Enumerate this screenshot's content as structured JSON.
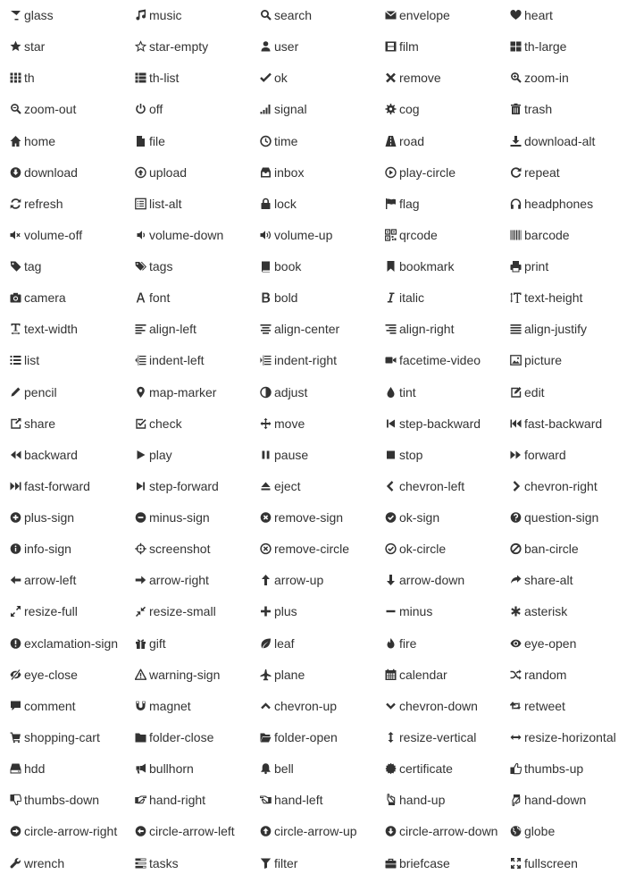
{
  "ink_color": "#333333",
  "icons": [
    {
      "name": "glass"
    },
    {
      "name": "music"
    },
    {
      "name": "search"
    },
    {
      "name": "envelope"
    },
    {
      "name": "heart"
    },
    {
      "name": "star"
    },
    {
      "name": "star-empty"
    },
    {
      "name": "user"
    },
    {
      "name": "film"
    },
    {
      "name": "th-large"
    },
    {
      "name": "th"
    },
    {
      "name": "th-list"
    },
    {
      "name": "ok"
    },
    {
      "name": "remove"
    },
    {
      "name": "zoom-in"
    },
    {
      "name": "zoom-out"
    },
    {
      "name": "off"
    },
    {
      "name": "signal"
    },
    {
      "name": "cog"
    },
    {
      "name": "trash"
    },
    {
      "name": "home"
    },
    {
      "name": "file"
    },
    {
      "name": "time"
    },
    {
      "name": "road"
    },
    {
      "name": "download-alt"
    },
    {
      "name": "download"
    },
    {
      "name": "upload"
    },
    {
      "name": "inbox"
    },
    {
      "name": "play-circle"
    },
    {
      "name": "repeat"
    },
    {
      "name": "refresh"
    },
    {
      "name": "list-alt"
    },
    {
      "name": "lock"
    },
    {
      "name": "flag"
    },
    {
      "name": "headphones"
    },
    {
      "name": "volume-off"
    },
    {
      "name": "volume-down"
    },
    {
      "name": "volume-up"
    },
    {
      "name": "qrcode"
    },
    {
      "name": "barcode"
    },
    {
      "name": "tag"
    },
    {
      "name": "tags"
    },
    {
      "name": "book"
    },
    {
      "name": "bookmark"
    },
    {
      "name": "print"
    },
    {
      "name": "camera"
    },
    {
      "name": "font"
    },
    {
      "name": "bold"
    },
    {
      "name": "italic"
    },
    {
      "name": "text-height"
    },
    {
      "name": "text-width"
    },
    {
      "name": "align-left"
    },
    {
      "name": "align-center"
    },
    {
      "name": "align-right"
    },
    {
      "name": "align-justify"
    },
    {
      "name": "list"
    },
    {
      "name": "indent-left"
    },
    {
      "name": "indent-right"
    },
    {
      "name": "facetime-video"
    },
    {
      "name": "picture"
    },
    {
      "name": "pencil"
    },
    {
      "name": "map-marker"
    },
    {
      "name": "adjust"
    },
    {
      "name": "tint"
    },
    {
      "name": "edit"
    },
    {
      "name": "share"
    },
    {
      "name": "check"
    },
    {
      "name": "move"
    },
    {
      "name": "step-backward"
    },
    {
      "name": "fast-backward"
    },
    {
      "name": "backward"
    },
    {
      "name": "play"
    },
    {
      "name": "pause"
    },
    {
      "name": "stop"
    },
    {
      "name": "forward"
    },
    {
      "name": "fast-forward"
    },
    {
      "name": "step-forward"
    },
    {
      "name": "eject"
    },
    {
      "name": "chevron-left"
    },
    {
      "name": "chevron-right"
    },
    {
      "name": "plus-sign"
    },
    {
      "name": "minus-sign"
    },
    {
      "name": "remove-sign"
    },
    {
      "name": "ok-sign"
    },
    {
      "name": "question-sign"
    },
    {
      "name": "info-sign"
    },
    {
      "name": "screenshot"
    },
    {
      "name": "remove-circle"
    },
    {
      "name": "ok-circle"
    },
    {
      "name": "ban-circle"
    },
    {
      "name": "arrow-left"
    },
    {
      "name": "arrow-right"
    },
    {
      "name": "arrow-up"
    },
    {
      "name": "arrow-down"
    },
    {
      "name": "share-alt"
    },
    {
      "name": "resize-full"
    },
    {
      "name": "resize-small"
    },
    {
      "name": "plus"
    },
    {
      "name": "minus"
    },
    {
      "name": "asterisk"
    },
    {
      "name": "exclamation-sign"
    },
    {
      "name": "gift"
    },
    {
      "name": "leaf"
    },
    {
      "name": "fire"
    },
    {
      "name": "eye-open"
    },
    {
      "name": "eye-close"
    },
    {
      "name": "warning-sign"
    },
    {
      "name": "plane"
    },
    {
      "name": "calendar"
    },
    {
      "name": "random"
    },
    {
      "name": "comment"
    },
    {
      "name": "magnet"
    },
    {
      "name": "chevron-up"
    },
    {
      "name": "chevron-down"
    },
    {
      "name": "retweet"
    },
    {
      "name": "shopping-cart"
    },
    {
      "name": "folder-close"
    },
    {
      "name": "folder-open"
    },
    {
      "name": "resize-vertical"
    },
    {
      "name": "resize-horizontal"
    },
    {
      "name": "hdd"
    },
    {
      "name": "bullhorn"
    },
    {
      "name": "bell"
    },
    {
      "name": "certificate"
    },
    {
      "name": "thumbs-up"
    },
    {
      "name": "thumbs-down"
    },
    {
      "name": "hand-right"
    },
    {
      "name": "hand-left"
    },
    {
      "name": "hand-up"
    },
    {
      "name": "hand-down"
    },
    {
      "name": "circle-arrow-right"
    },
    {
      "name": "circle-arrow-left"
    },
    {
      "name": "circle-arrow-up"
    },
    {
      "name": "circle-arrow-down"
    },
    {
      "name": "globe"
    },
    {
      "name": "wrench"
    },
    {
      "name": "tasks"
    },
    {
      "name": "filter"
    },
    {
      "name": "briefcase"
    },
    {
      "name": "fullscreen"
    }
  ]
}
